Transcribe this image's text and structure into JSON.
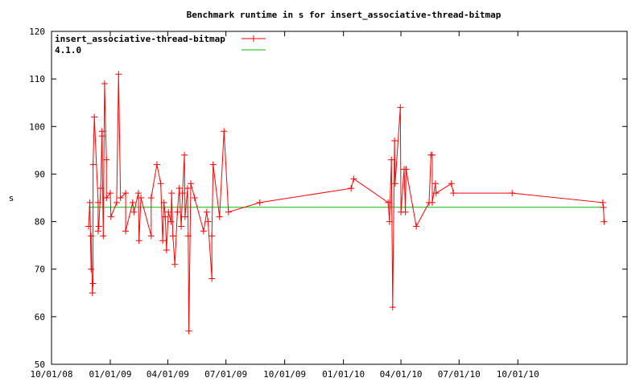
{
  "chart_data": {
    "type": "line",
    "title": "Benchmark runtime in s for insert_associative-thread-bitmap",
    "xlabel": "",
    "ylabel": "s",
    "xlim": [
      "2008-10-01",
      "2011-03-21"
    ],
    "ylim": [
      50,
      120
    ],
    "yticks": [
      50,
      60,
      70,
      80,
      90,
      100,
      110,
      120
    ],
    "xticks": [
      {
        "date": "2008-10-01",
        "label": "10/01/08"
      },
      {
        "date": "2009-01-01",
        "label": "01/01/09"
      },
      {
        "date": "2009-04-01",
        "label": "04/01/09"
      },
      {
        "date": "2009-07-01",
        "label": "07/01/09"
      },
      {
        "date": "2009-10-01",
        "label": "10/01/09"
      },
      {
        "date": "2010-01-01",
        "label": "01/01/10"
      },
      {
        "date": "2010-04-01",
        "label": "04/01/10"
      },
      {
        "date": "2010-07-01",
        "label": "07/01/10"
      },
      {
        "date": "2010-10-01",
        "label": "10/01/10"
      }
    ],
    "grid": false,
    "legend_placement": "top-left",
    "series": [
      {
        "name": "insert_associative-thread-bitmap",
        "color": "#ff0000",
        "marker": "plus",
        "points": [
          [
            "2008-11-28",
            79
          ],
          [
            "2008-11-30",
            84
          ],
          [
            "2008-12-02",
            70
          ],
          [
            "2008-12-02",
            77
          ],
          [
            "2008-12-04",
            65
          ],
          [
            "2008-12-05",
            67
          ],
          [
            "2008-12-05",
            92
          ],
          [
            "2008-12-07",
            102
          ],
          [
            "2008-12-13",
            84
          ],
          [
            "2008-12-13",
            78
          ],
          [
            "2008-12-14",
            79
          ],
          [
            "2008-12-17",
            87
          ],
          [
            "2008-12-19",
            99
          ],
          [
            "2008-12-19",
            98
          ],
          [
            "2008-12-21",
            77
          ],
          [
            "2008-12-23",
            109
          ],
          [
            "2008-12-26",
            93
          ],
          [
            "2008-12-26",
            85
          ],
          [
            "2009-01-01",
            86
          ],
          [
            "2009-01-02",
            81
          ],
          [
            "2009-01-11",
            84
          ],
          [
            "2009-01-14",
            111
          ],
          [
            "2009-01-17",
            85
          ],
          [
            "2009-01-25",
            86
          ],
          [
            "2009-01-25",
            78
          ],
          [
            "2009-02-05",
            84
          ],
          [
            "2009-02-07",
            82
          ],
          [
            "2009-02-14",
            86
          ],
          [
            "2009-02-15",
            76
          ],
          [
            "2009-02-18",
            85
          ],
          [
            "2009-03-06",
            77
          ],
          [
            "2009-03-06",
            85
          ],
          [
            "2009-03-15",
            92
          ],
          [
            "2009-03-21",
            88
          ],
          [
            "2009-03-24",
            76
          ],
          [
            "2009-03-26",
            84
          ],
          [
            "2009-03-28",
            81
          ],
          [
            "2009-03-30",
            74
          ],
          [
            "2009-04-02",
            82
          ],
          [
            "2009-04-06",
            80
          ],
          [
            "2009-04-07",
            86
          ],
          [
            "2009-04-09",
            77
          ],
          [
            "2009-04-12",
            71
          ],
          [
            "2009-04-16",
            82
          ],
          [
            "2009-04-19",
            87
          ],
          [
            "2009-04-22",
            79
          ],
          [
            "2009-04-24",
            86
          ],
          [
            "2009-04-27",
            94
          ],
          [
            "2009-04-28",
            81
          ],
          [
            "2009-05-02",
            87
          ],
          [
            "2009-05-03",
            77
          ],
          [
            "2009-05-04",
            57
          ],
          [
            "2009-05-07",
            88
          ],
          [
            "2009-05-13",
            85
          ],
          [
            "2009-05-27",
            78
          ],
          [
            "2009-06-01",
            82
          ],
          [
            "2009-06-03",
            80
          ],
          [
            "2009-06-09",
            68
          ],
          [
            "2009-06-09",
            77
          ],
          [
            "2009-06-11",
            92
          ],
          [
            "2009-06-21",
            81
          ],
          [
            "2009-06-28",
            99
          ],
          [
            "2009-07-05",
            82
          ],
          [
            "2009-08-23",
            84
          ],
          [
            "2010-01-13",
            87
          ],
          [
            "2010-01-17",
            89
          ],
          [
            "2010-03-12",
            84
          ],
          [
            "2010-03-14",
            80
          ],
          [
            "2010-03-17",
            93
          ],
          [
            "2010-03-19",
            62
          ],
          [
            "2010-03-22",
            97
          ],
          [
            "2010-03-23",
            88
          ],
          [
            "2010-03-31",
            104
          ],
          [
            "2010-04-01",
            82
          ],
          [
            "2010-04-06",
            91
          ],
          [
            "2010-04-08",
            82
          ],
          [
            "2010-04-09",
            91
          ],
          [
            "2010-04-25",
            79
          ],
          [
            "2010-05-15",
            84
          ],
          [
            "2010-05-18",
            94
          ],
          [
            "2010-05-20",
            94
          ],
          [
            "2010-05-20",
            84
          ],
          [
            "2010-05-25",
            88
          ],
          [
            "2010-05-26",
            86
          ],
          [
            "2010-06-19",
            88
          ],
          [
            "2010-06-22",
            86
          ],
          [
            "2010-09-22",
            86
          ],
          [
            "2011-02-11",
            84
          ],
          [
            "2011-02-12",
            83
          ],
          [
            "2011-02-13",
            80
          ]
        ]
      },
      {
        "name": "4.1.0",
        "color": "#00c000",
        "marker": "none",
        "constant": 83,
        "points": [
          [
            "2008-11-28",
            83
          ],
          [
            "2011-02-13",
            83
          ]
        ]
      }
    ]
  }
}
